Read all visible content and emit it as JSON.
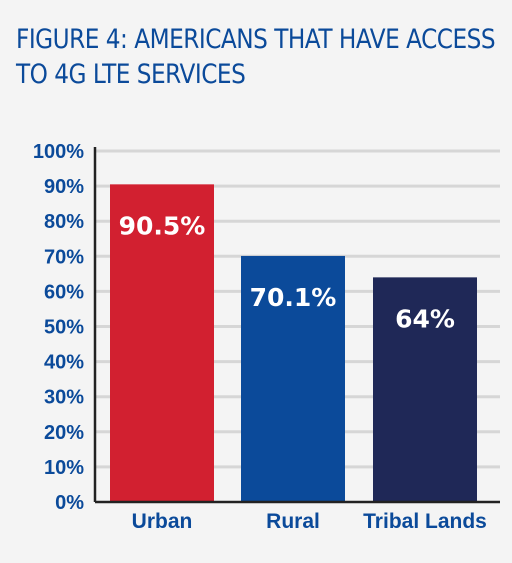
{
  "title_lines": [
    "FIGURE 4: AMERICANS THAT HAVE ACCESS",
    "TO 4G LTE SERVICES"
  ],
  "chart_data": {
    "type": "bar",
    "title": "FIGURE 4: AMERICANS THAT HAVE ACCESS TO 4G LTE SERVICES",
    "categories": [
      "Urban",
      "Rural",
      "Tribal Lands"
    ],
    "values": [
      90.5,
      70.1,
      64
    ],
    "data_labels": [
      "90.5%",
      "70.1%",
      "64%"
    ],
    "bar_colors": [
      "#d22030",
      "#0b4a9a",
      "#1f2857"
    ],
    "ylim": [
      0,
      100
    ],
    "yticks": [
      0,
      10,
      20,
      30,
      40,
      50,
      60,
      70,
      80,
      90,
      100
    ],
    "ytick_labels": [
      "0%",
      "10%",
      "20%",
      "30%",
      "40%",
      "50%",
      "60%",
      "70%",
      "80%",
      "90%",
      "100%"
    ],
    "grid": true,
    "colors": {
      "text": "#0b4a9a",
      "grid": "#d6d6d6",
      "axis": "#222222",
      "background": "#f4f4f4"
    }
  }
}
